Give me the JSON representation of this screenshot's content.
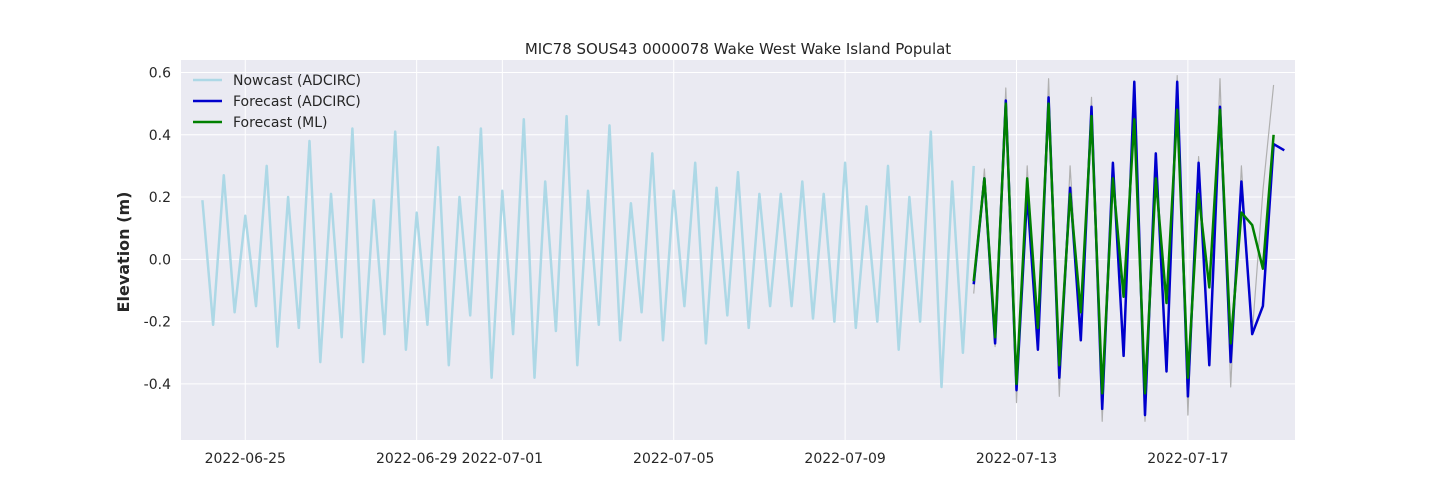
{
  "chart_data": {
    "type": "line",
    "title": "MIC78 SOUS43 0000078 Wake West Wake Island Populat",
    "xlabel": "",
    "ylabel": "Elevation (m)",
    "xlim": [
      "2022-06-23T12:00",
      "2022-07-19T12:00"
    ],
    "ylim": [
      -0.58,
      0.64
    ],
    "grid": true,
    "legend_position": "top-left",
    "x_tick_labels": [
      "2022-06-25",
      "2022-06-29",
      "2022-07-01",
      "2022-07-05",
      "2022-07-09",
      "2022-07-13",
      "2022-07-17"
    ],
    "y_tick_labels": [
      "-0.4",
      "-0.2",
      "0.0",
      "0.2",
      "0.4",
      "0.6"
    ],
    "y_ticks": [
      -0.4,
      -0.2,
      0.0,
      0.2,
      0.4,
      0.6
    ],
    "series": [
      {
        "name": "Nowcast (ADCIRC)",
        "color": "#add8e6",
        "x": [
          "2022-06-24T00:00",
          "2022-06-24T06:00",
          "2022-06-24T12:00",
          "2022-06-24T18:00",
          "2022-06-25T00:00",
          "2022-06-25T06:00",
          "2022-06-25T12:00",
          "2022-06-25T18:00",
          "2022-06-26T00:00",
          "2022-06-26T06:00",
          "2022-06-26T12:00",
          "2022-06-26T18:00",
          "2022-06-27T00:00",
          "2022-06-27T06:00",
          "2022-06-27T12:00",
          "2022-06-27T18:00",
          "2022-06-28T00:00",
          "2022-06-28T06:00",
          "2022-06-28T12:00",
          "2022-06-28T18:00",
          "2022-06-29T00:00",
          "2022-06-29T06:00",
          "2022-06-29T12:00",
          "2022-06-29T18:00",
          "2022-06-30T00:00",
          "2022-06-30T06:00",
          "2022-06-30T12:00",
          "2022-06-30T18:00",
          "2022-07-01T00:00",
          "2022-07-01T06:00",
          "2022-07-01T12:00",
          "2022-07-01T18:00",
          "2022-07-02T00:00",
          "2022-07-02T06:00",
          "2022-07-02T12:00",
          "2022-07-02T18:00",
          "2022-07-03T00:00",
          "2022-07-03T06:00",
          "2022-07-03T12:00",
          "2022-07-03T18:00",
          "2022-07-04T00:00",
          "2022-07-04T06:00",
          "2022-07-04T12:00",
          "2022-07-04T18:00",
          "2022-07-05T00:00",
          "2022-07-05T06:00",
          "2022-07-05T12:00",
          "2022-07-05T18:00",
          "2022-07-06T00:00",
          "2022-07-06T06:00",
          "2022-07-06T12:00",
          "2022-07-06T18:00",
          "2022-07-07T00:00",
          "2022-07-07T06:00",
          "2022-07-07T12:00",
          "2022-07-07T18:00",
          "2022-07-08T00:00",
          "2022-07-08T06:00",
          "2022-07-08T12:00",
          "2022-07-08T18:00",
          "2022-07-09T00:00",
          "2022-07-09T06:00",
          "2022-07-09T12:00",
          "2022-07-09T18:00",
          "2022-07-10T00:00",
          "2022-07-10T06:00",
          "2022-07-10T12:00",
          "2022-07-10T18:00",
          "2022-07-11T00:00",
          "2022-07-11T06:00",
          "2022-07-11T12:00",
          "2022-07-11T18:00",
          "2022-07-12T00:00"
        ],
        "y": [
          0.19,
          -0.21,
          0.27,
          -0.17,
          0.14,
          -0.15,
          0.3,
          -0.28,
          0.2,
          -0.22,
          0.38,
          -0.33,
          0.21,
          -0.25,
          0.42,
          -0.33,
          0.19,
          -0.24,
          0.41,
          -0.29,
          0.15,
          -0.21,
          0.36,
          -0.34,
          0.2,
          -0.18,
          0.42,
          -0.38,
          0.22,
          -0.24,
          0.45,
          -0.38,
          0.25,
          -0.23,
          0.46,
          -0.34,
          0.22,
          -0.21,
          0.43,
          -0.26,
          0.18,
          -0.17,
          0.34,
          -0.26,
          0.22,
          -0.15,
          0.31,
          -0.27,
          0.23,
          -0.18,
          0.28,
          -0.22,
          0.21,
          -0.15,
          0.21,
          -0.15,
          0.25,
          -0.19,
          0.21,
          -0.2,
          0.31,
          -0.22,
          0.17,
          -0.2,
          0.3,
          -0.29,
          0.2,
          -0.2,
          0.41,
          -0.41,
          0.25,
          -0.3,
          0.3
        ]
      },
      {
        "name": "Forecast (ADCIRC)",
        "color": "#0000cd",
        "x": [
          "2022-07-12T00:00",
          "2022-07-12T06:00",
          "2022-07-12T12:00",
          "2022-07-12T18:00",
          "2022-07-13T00:00",
          "2022-07-13T06:00",
          "2022-07-13T12:00",
          "2022-07-13T18:00",
          "2022-07-14T00:00",
          "2022-07-14T06:00",
          "2022-07-14T12:00",
          "2022-07-14T18:00",
          "2022-07-15T00:00",
          "2022-07-15T06:00",
          "2022-07-15T12:00",
          "2022-07-15T18:00",
          "2022-07-16T00:00",
          "2022-07-16T06:00",
          "2022-07-16T12:00",
          "2022-07-16T18:00",
          "2022-07-17T00:00",
          "2022-07-17T06:00",
          "2022-07-17T12:00",
          "2022-07-17T18:00",
          "2022-07-18T00:00",
          "2022-07-18T06:00",
          "2022-07-18T12:00",
          "2022-07-18T18:00",
          "2022-07-19T00:00",
          "2022-07-19T06:00"
        ],
        "y": [
          -0.08,
          0.26,
          -0.27,
          0.51,
          -0.42,
          0.21,
          -0.29,
          0.52,
          -0.38,
          0.23,
          -0.26,
          0.49,
          -0.48,
          0.31,
          -0.31,
          0.57,
          -0.5,
          0.34,
          -0.36,
          0.57,
          -0.44,
          0.31,
          -0.34,
          0.49,
          -0.33,
          0.25,
          -0.24,
          -0.15,
          0.37,
          0.35
        ]
      },
      {
        "name": "Forecast (ML)",
        "color": "#008000",
        "x": [
          "2022-07-12T00:00",
          "2022-07-12T06:00",
          "2022-07-12T12:00",
          "2022-07-12T18:00",
          "2022-07-13T00:00",
          "2022-07-13T06:00",
          "2022-07-13T12:00",
          "2022-07-13T18:00",
          "2022-07-14T00:00",
          "2022-07-14T06:00",
          "2022-07-14T12:00",
          "2022-07-14T18:00",
          "2022-07-15T00:00",
          "2022-07-15T06:00",
          "2022-07-15T12:00",
          "2022-07-15T18:00",
          "2022-07-16T00:00",
          "2022-07-16T06:00",
          "2022-07-16T12:00",
          "2022-07-16T18:00",
          "2022-07-17T00:00",
          "2022-07-17T06:00",
          "2022-07-17T12:00",
          "2022-07-17T18:00",
          "2022-07-18T00:00",
          "2022-07-18T06:00",
          "2022-07-18T12:00",
          "2022-07-18T18:00",
          "2022-07-19T00:00"
        ],
        "y": [
          -0.07,
          0.26,
          -0.25,
          0.5,
          -0.4,
          0.26,
          -0.22,
          0.5,
          -0.34,
          0.21,
          -0.17,
          0.46,
          -0.43,
          0.26,
          -0.12,
          0.45,
          -0.43,
          0.26,
          -0.14,
          0.48,
          -0.38,
          0.21,
          -0.09,
          0.48,
          -0.27,
          0.15,
          0.11,
          -0.03,
          0.4
        ]
      },
      {
        "name": "",
        "color": "#b0b0b0",
        "x": [
          "2022-07-12T00:00",
          "2022-07-12T06:00",
          "2022-07-12T12:00",
          "2022-07-12T18:00",
          "2022-07-13T00:00",
          "2022-07-13T06:00",
          "2022-07-13T12:00",
          "2022-07-13T18:00",
          "2022-07-14T00:00",
          "2022-07-14T06:00",
          "2022-07-14T12:00",
          "2022-07-14T18:00",
          "2022-07-15T00:00",
          "2022-07-15T06:00",
          "2022-07-15T12:00",
          "2022-07-15T18:00",
          "2022-07-16T00:00",
          "2022-07-16T06:00",
          "2022-07-16T12:00",
          "2022-07-16T18:00",
          "2022-07-17T00:00",
          "2022-07-17T06:00",
          "2022-07-17T12:00",
          "2022-07-17T18:00",
          "2022-07-18T00:00",
          "2022-07-18T06:00",
          "2022-07-18T12:00",
          "2022-07-18T18:00",
          "2022-07-19T00:00"
        ],
        "y": [
          -0.11,
          0.29,
          -0.28,
          0.55,
          -0.46,
          0.3,
          -0.28,
          0.58,
          -0.44,
          0.3,
          -0.26,
          0.52,
          -0.52,
          0.31,
          -0.29,
          0.56,
          -0.52,
          0.32,
          -0.34,
          0.59,
          -0.5,
          0.33,
          -0.32,
          0.58,
          -0.41,
          0.3,
          -0.24,
          0.22,
          0.56
        ]
      }
    ]
  }
}
